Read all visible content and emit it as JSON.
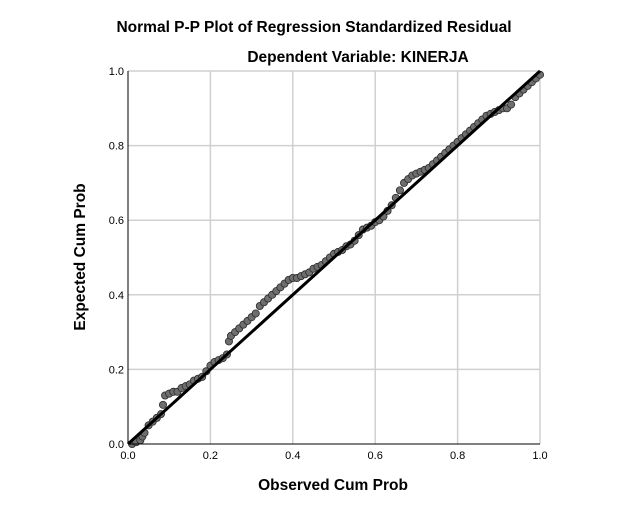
{
  "chart_data": {
    "type": "scatter",
    "title": "Normal P-P Plot of Regression Standardized Residual",
    "subtitle": "Dependent Variable: KINERJA",
    "xlabel": "Observed Cum Prob",
    "ylabel": "Expected Cum Prob",
    "xlim": [
      0,
      1
    ],
    "ylim": [
      0,
      1
    ],
    "xticks": [
      "0.0",
      "0.2",
      "0.4",
      "0.6",
      "0.8",
      "1.0"
    ],
    "yticks": [
      "0.0",
      "0.2",
      "0.4",
      "0.6",
      "0.8",
      "1.0"
    ],
    "grid": true,
    "reference_line": [
      [
        0,
        0
      ],
      [
        1,
        1
      ]
    ],
    "colors": {
      "point_fill": "#6e6e6e",
      "point_stroke": "#2a2a2a",
      "line": "#000000",
      "grid": "#d0d0d0"
    },
    "points": [
      [
        0.01,
        0.0
      ],
      [
        0.02,
        0.005
      ],
      [
        0.03,
        0.01
      ],
      [
        0.035,
        0.02
      ],
      [
        0.04,
        0.03
      ],
      [
        0.05,
        0.05
      ],
      [
        0.06,
        0.06
      ],
      [
        0.07,
        0.07
      ],
      [
        0.08,
        0.08
      ],
      [
        0.085,
        0.105
      ],
      [
        0.09,
        0.13
      ],
      [
        0.1,
        0.135
      ],
      [
        0.11,
        0.14
      ],
      [
        0.12,
        0.14
      ],
      [
        0.13,
        0.15
      ],
      [
        0.14,
        0.155
      ],
      [
        0.15,
        0.16
      ],
      [
        0.16,
        0.17
      ],
      [
        0.17,
        0.175
      ],
      [
        0.18,
        0.18
      ],
      [
        0.19,
        0.195
      ],
      [
        0.2,
        0.21
      ],
      [
        0.21,
        0.22
      ],
      [
        0.22,
        0.225
      ],
      [
        0.23,
        0.23
      ],
      [
        0.24,
        0.24
      ],
      [
        0.245,
        0.275
      ],
      [
        0.25,
        0.29
      ],
      [
        0.26,
        0.3
      ],
      [
        0.27,
        0.31
      ],
      [
        0.28,
        0.32
      ],
      [
        0.29,
        0.33
      ],
      [
        0.3,
        0.34
      ],
      [
        0.31,
        0.35
      ],
      [
        0.32,
        0.37
      ],
      [
        0.33,
        0.38
      ],
      [
        0.34,
        0.39
      ],
      [
        0.35,
        0.4
      ],
      [
        0.36,
        0.41
      ],
      [
        0.37,
        0.42
      ],
      [
        0.38,
        0.43
      ],
      [
        0.39,
        0.44
      ],
      [
        0.4,
        0.445
      ],
      [
        0.41,
        0.445
      ],
      [
        0.42,
        0.45
      ],
      [
        0.43,
        0.455
      ],
      [
        0.44,
        0.46
      ],
      [
        0.45,
        0.47
      ],
      [
        0.46,
        0.475
      ],
      [
        0.47,
        0.48
      ],
      [
        0.48,
        0.49
      ],
      [
        0.49,
        0.5
      ],
      [
        0.5,
        0.51
      ],
      [
        0.51,
        0.515
      ],
      [
        0.52,
        0.52
      ],
      [
        0.53,
        0.53
      ],
      [
        0.54,
        0.535
      ],
      [
        0.55,
        0.545
      ],
      [
        0.56,
        0.56
      ],
      [
        0.57,
        0.575
      ],
      [
        0.58,
        0.58
      ],
      [
        0.59,
        0.585
      ],
      [
        0.6,
        0.595
      ],
      [
        0.61,
        0.6
      ],
      [
        0.62,
        0.61
      ],
      [
        0.63,
        0.625
      ],
      [
        0.64,
        0.64
      ],
      [
        0.65,
        0.66
      ],
      [
        0.66,
        0.68
      ],
      [
        0.67,
        0.7
      ],
      [
        0.68,
        0.71
      ],
      [
        0.69,
        0.72
      ],
      [
        0.7,
        0.725
      ],
      [
        0.71,
        0.73
      ],
      [
        0.72,
        0.735
      ],
      [
        0.73,
        0.74
      ],
      [
        0.74,
        0.75
      ],
      [
        0.75,
        0.76
      ],
      [
        0.76,
        0.77
      ],
      [
        0.77,
        0.78
      ],
      [
        0.78,
        0.79
      ],
      [
        0.79,
        0.8
      ],
      [
        0.8,
        0.81
      ],
      [
        0.81,
        0.82
      ],
      [
        0.82,
        0.83
      ],
      [
        0.83,
        0.84
      ],
      [
        0.84,
        0.85
      ],
      [
        0.85,
        0.86
      ],
      [
        0.86,
        0.87
      ],
      [
        0.87,
        0.88
      ],
      [
        0.88,
        0.885
      ],
      [
        0.89,
        0.89
      ],
      [
        0.9,
        0.895
      ],
      [
        0.91,
        0.9
      ],
      [
        0.92,
        0.9
      ],
      [
        0.93,
        0.91
      ],
      [
        0.94,
        0.93
      ],
      [
        0.95,
        0.94
      ],
      [
        0.96,
        0.95
      ],
      [
        0.97,
        0.96
      ],
      [
        0.98,
        0.97
      ],
      [
        0.99,
        0.98
      ],
      [
        1.0,
        0.99
      ]
    ]
  }
}
